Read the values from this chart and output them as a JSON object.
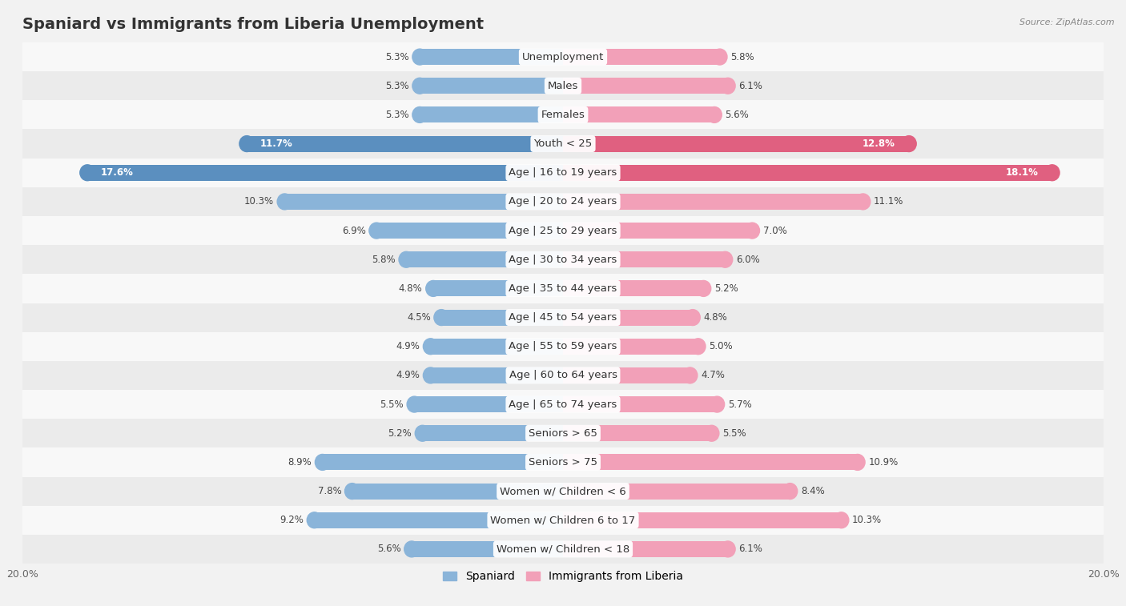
{
  "title": "Spaniard vs Immigrants from Liberia Unemployment",
  "source": "Source: ZipAtlas.com",
  "categories": [
    "Unemployment",
    "Males",
    "Females",
    "Youth < 25",
    "Age | 16 to 19 years",
    "Age | 20 to 24 years",
    "Age | 25 to 29 years",
    "Age | 30 to 34 years",
    "Age | 35 to 44 years",
    "Age | 45 to 54 years",
    "Age | 55 to 59 years",
    "Age | 60 to 64 years",
    "Age | 65 to 74 years",
    "Seniors > 65",
    "Seniors > 75",
    "Women w/ Children < 6",
    "Women w/ Children 6 to 17",
    "Women w/ Children < 18"
  ],
  "spaniard_values": [
    5.3,
    5.3,
    5.3,
    11.7,
    17.6,
    10.3,
    6.9,
    5.8,
    4.8,
    4.5,
    4.9,
    4.9,
    5.5,
    5.2,
    8.9,
    7.8,
    9.2,
    5.6
  ],
  "liberia_values": [
    5.8,
    6.1,
    5.6,
    12.8,
    18.1,
    11.1,
    7.0,
    6.0,
    5.2,
    4.8,
    5.0,
    4.7,
    5.7,
    5.5,
    10.9,
    8.4,
    10.3,
    6.1
  ],
  "spaniard_color": "#8ab4d9",
  "liberia_color": "#f2a0b8",
  "spaniard_dark_color": "#5b8fbf",
  "liberia_dark_color": "#e06080",
  "bg_color": "#f2f2f2",
  "row_even_color": "#f8f8f8",
  "row_odd_color": "#ebebeb",
  "axis_max": 20.0,
  "bar_height": 0.55,
  "title_fontsize": 14,
  "label_fontsize": 9.5,
  "value_fontsize": 8.5,
  "legend_fontsize": 10,
  "highlight_rows": [
    3,
    4
  ]
}
